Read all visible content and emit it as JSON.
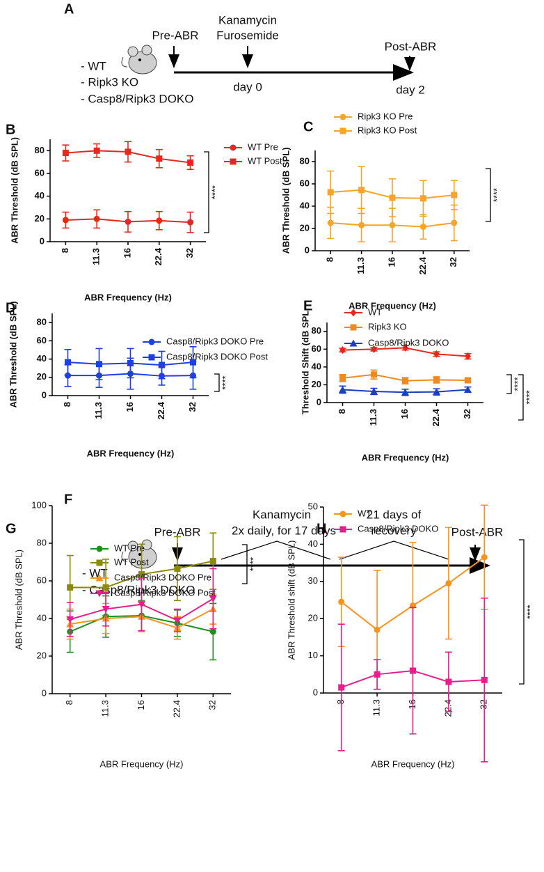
{
  "panel_a": {
    "label": "A",
    "pre": "Pre-ABR",
    "drug_1": "Kanamycin",
    "drug_2": "Furosemide",
    "post": "Post-ABR",
    "day_start": "day 0",
    "day_end": "day 2",
    "groups": [
      "- WT",
      "- Ripk3 KO",
      "- Casp8/Ripk3 DOKO"
    ]
  },
  "panel_f": {
    "label": "F",
    "pre": "Pre-ABR",
    "drug_1": "Kanamycin",
    "drug_2": "2x daily, for 17 days",
    "recovery_1": "21 days of",
    "recovery_2": "recovery",
    "post": "Post-ABR",
    "groups": [
      "- WT",
      "- Casp8/Ripk3 DOKO"
    ]
  },
  "chart_data": [
    {
      "type": "line",
      "label": "B",
      "xlabel": "ABR Frequency (Hz)",
      "ylabel": "ABR Threshold (dB SPL)",
      "categories": [
        "8",
        "11.3",
        "16",
        "22.4",
        "32"
      ],
      "ylim": [
        0,
        90
      ],
      "yticks": [
        0,
        20,
        40,
        60,
        80
      ],
      "annotations": [
        "****"
      ],
      "series": [
        {
          "name": "WT Pre",
          "color": "#e8281c",
          "marker": "circle",
          "values": [
            19,
            20,
            17.5,
            18.5,
            17
          ],
          "errors": [
            7,
            8,
            9,
            8,
            9
          ]
        },
        {
          "name": "WT Post",
          "color": "#e8281c",
          "marker": "square",
          "values": [
            78,
            80,
            79,
            73,
            69.5
          ],
          "errors": [
            7,
            6,
            9,
            8,
            6
          ]
        }
      ]
    },
    {
      "type": "line",
      "label": "C",
      "xlabel": "ABR Frequency (Hz)",
      "ylabel": "ABR Threshold (dB SPL)",
      "categories": [
        "8",
        "11.3",
        "16",
        "22.4",
        "32"
      ],
      "ylim": [
        0,
        90
      ],
      "yticks": [
        0,
        20,
        40,
        60,
        80
      ],
      "annotations": [
        "****"
      ],
      "series": [
        {
          "name": "Ripk3 KO Pre",
          "color": "#f6a529",
          "marker": "circle",
          "values": [
            25,
            23,
            23,
            21.5,
            25
          ],
          "errors": [
            14,
            15,
            15,
            11,
            16
          ]
        },
        {
          "name": "Ripk3 KO Post",
          "color": "#f6a529",
          "marker": "square",
          "values": [
            52.5,
            54.5,
            47.5,
            47,
            50
          ],
          "errors": [
            19,
            21,
            17,
            16,
            13
          ]
        }
      ]
    },
    {
      "type": "line",
      "label": "D",
      "xlabel": "ABR Frequency (Hz)",
      "ylabel": "ABR Threshold (dB SPL)",
      "categories": [
        "8",
        "11.3",
        "16",
        "22.4",
        "32"
      ],
      "ylim": [
        0,
        90
      ],
      "yticks": [
        0,
        20,
        40,
        60,
        80
      ],
      "annotations": [
        "****"
      ],
      "series": [
        {
          "name": "Casp8/Ripk3 DOKO Pre",
          "color": "#1f40e0",
          "marker": "circle",
          "values": [
            22,
            22,
            24,
            21.5,
            22
          ],
          "errors": [
            12,
            13,
            17,
            10,
            15
          ]
        },
        {
          "name": "Casp8/Ripk3 DOKO Post",
          "color": "#1f40e0",
          "marker": "square",
          "values": [
            36.5,
            34.5,
            35.5,
            33.5,
            36.5
          ],
          "errors": [
            14,
            17,
            16,
            15,
            17
          ]
        }
      ]
    },
    {
      "type": "line",
      "label": "E",
      "xlabel": "ABR Frequency (Hz)",
      "ylabel": "Threshold Shift (dB SPL",
      "categories": [
        "8",
        "11.3",
        "16",
        "22.4",
        "32"
      ],
      "ylim": [
        0,
        90
      ],
      "yticks": [
        0,
        20,
        40,
        60,
        80
      ],
      "annotations": [
        "****",
        "****"
      ],
      "series": [
        {
          "name": "WT",
          "color": "#e8281c",
          "marker": "diamond",
          "values": [
            59,
            60,
            61.5,
            54.5,
            52
          ],
          "errors": [
            2,
            2,
            2.5,
            2.5,
            3
          ]
        },
        {
          "name": "Ripk3 KO",
          "color": "#f08a1e",
          "marker": "square",
          "values": [
            27.5,
            31.5,
            24.5,
            25.5,
            25
          ],
          "errors": [
            4,
            5,
            3.5,
            3.5,
            2
          ]
        },
        {
          "name": "Casp8/Ripk3 DOKO",
          "color": "#1b3fbe",
          "marker": "triangle",
          "values": [
            14.5,
            12.5,
            11.5,
            12,
            14.5
          ],
          "errors": [
            4,
            3.5,
            3.5,
            3.5,
            3
          ]
        }
      ]
    },
    {
      "type": "line",
      "label": "G",
      "xlabel": "ABR Frequency (Hz)",
      "ylabel": "ABR Threshold (dB SPL)",
      "categories": [
        "8",
        "11.3",
        "16",
        "22.4",
        "32"
      ],
      "ylim": [
        0,
        100
      ],
      "yticks": [
        0,
        20,
        40,
        60,
        80,
        100
      ],
      "annotations": [
        "****"
      ],
      "series": [
        {
          "name": "WT Pre",
          "color": "#1f8f1f",
          "marker": "circle",
          "values": [
            33,
            41,
            41.5,
            37.5,
            33
          ],
          "errors": [
            11,
            11,
            8,
            7,
            15
          ]
        },
        {
          "name": "WT Post",
          "color": "#8b8b00",
          "marker": "square",
          "values": [
            56.5,
            56.5,
            63.5,
            66.5,
            70.5
          ],
          "errors": [
            17,
            15,
            16,
            17,
            15
          ]
        },
        {
          "name": "Casp8/Ripk3 DOKO Pre",
          "color": "#f7941d",
          "marker": "triangle",
          "values": [
            37,
            40,
            41,
            35,
            45
          ],
          "errors": [
            8,
            8,
            8,
            6,
            8
          ]
        },
        {
          "name": "Casp8/Ripk3 DOKO Post",
          "color": "#e91e8c",
          "marker": "triangle-down",
          "values": [
            39.5,
            45,
            47.5,
            39,
            50.5
          ],
          "errors": [
            9,
            9,
            14,
            6,
            16
          ]
        }
      ]
    },
    {
      "type": "line",
      "label": "H",
      "xlabel": "ABR Frequency (Hz)",
      "ylabel": "ABR Threshold shift (dB SPL)",
      "categories": [
        "8",
        "11.3",
        "16",
        "22.4",
        "32"
      ],
      "ylim": [
        0,
        50
      ],
      "yticks": [
        0,
        10,
        20,
        30,
        40,
        50
      ],
      "annotations": [
        "****"
      ],
      "series": [
        {
          "name": "WT",
          "color": "#f7941d",
          "marker": "circle",
          "values": [
            24.5,
            17,
            23.5,
            29.5,
            36.5
          ],
          "errors": [
            12,
            16,
            17,
            15,
            14
          ]
        },
        {
          "name": "Casp8/Ripk3 DOKO",
          "color": "#e91e8c",
          "marker": "square",
          "values": [
            1.5,
            5,
            6,
            3,
            3.5
          ],
          "errors": [
            17,
            4,
            17,
            8,
            22
          ]
        }
      ]
    }
  ]
}
